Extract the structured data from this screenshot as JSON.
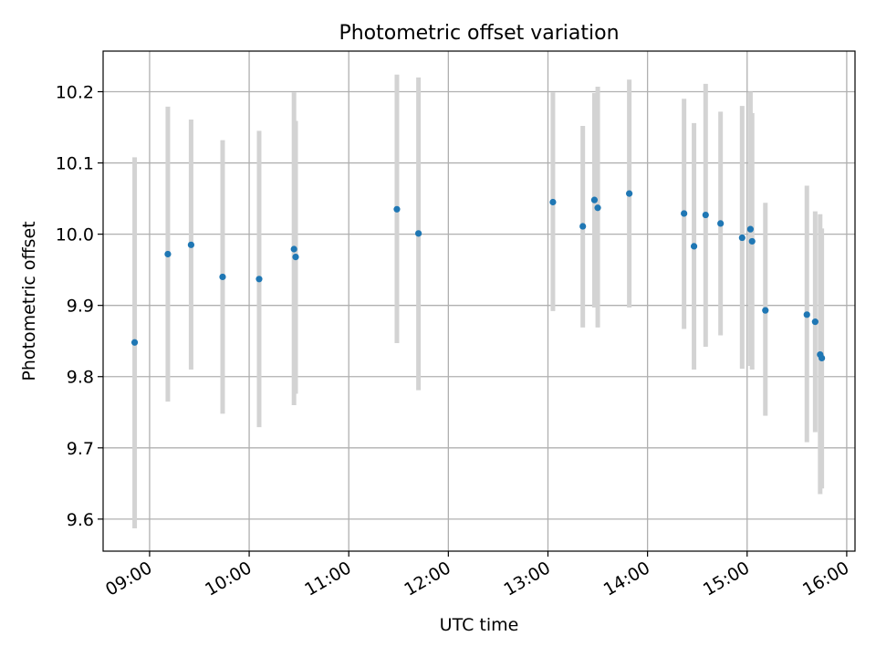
{
  "chart_data": {
    "type": "scatter",
    "title": "Photometric offset variation",
    "xlabel": "UTC time",
    "ylabel": "Photometric offset",
    "x_ticks": [
      "09:00",
      "10:00",
      "11:00",
      "12:00",
      "13:00",
      "14:00",
      "15:00",
      "16:00"
    ],
    "y_ticks": [
      "9.6",
      "9.7",
      "9.8",
      "9.9",
      "10.0",
      "10.1",
      "10.2"
    ],
    "xlim": [
      "08:32",
      "16:05"
    ],
    "ylim": [
      9.555,
      10.257
    ],
    "grid": true,
    "colors": {
      "marker": "#1f77b4",
      "errorbar": "#d3d3d3"
    },
    "points": [
      {
        "x": "08:51",
        "y": 9.848,
        "ymin": 9.587,
        "ymax": 10.108
      },
      {
        "x": "09:11",
        "y": 9.972,
        "ymin": 9.765,
        "ymax": 10.179
      },
      {
        "x": "09:25",
        "y": 9.985,
        "ymin": 9.81,
        "ymax": 10.161
      },
      {
        "x": "09:44",
        "y": 9.94,
        "ymin": 9.748,
        "ymax": 10.132
      },
      {
        "x": "10:06",
        "y": 9.937,
        "ymin": 9.729,
        "ymax": 10.145
      },
      {
        "x": "10:27",
        "y": 9.979,
        "ymin": 9.76,
        "ymax": 10.199
      },
      {
        "x": "10:28",
        "y": 9.968,
        "ymin": 9.776,
        "ymax": 10.159
      },
      {
        "x": "11:29",
        "y": 10.035,
        "ymin": 9.847,
        "ymax": 10.224
      },
      {
        "x": "11:42",
        "y": 10.001,
        "ymin": 9.781,
        "ymax": 10.22
      },
      {
        "x": "13:03",
        "y": 10.045,
        "ymin": 9.892,
        "ymax": 10.199
      },
      {
        "x": "13:21",
        "y": 10.011,
        "ymin": 9.869,
        "ymax": 10.152
      },
      {
        "x": "13:28",
        "y": 10.048,
        "ymin": 9.897,
        "ymax": 10.198
      },
      {
        "x": "13:30",
        "y": 10.037,
        "ymin": 9.869,
        "ymax": 10.207
      },
      {
        "x": "13:49",
        "y": 10.057,
        "ymin": 9.897,
        "ymax": 10.217
      },
      {
        "x": "14:22",
        "y": 10.029,
        "ymin": 9.867,
        "ymax": 10.19
      },
      {
        "x": "14:28",
        "y": 9.983,
        "ymin": 9.81,
        "ymax": 10.156
      },
      {
        "x": "14:35",
        "y": 10.027,
        "ymin": 9.842,
        "ymax": 10.211
      },
      {
        "x": "14:44",
        "y": 10.015,
        "ymin": 9.858,
        "ymax": 10.172
      },
      {
        "x": "14:57",
        "y": 9.995,
        "ymin": 9.811,
        "ymax": 10.18
      },
      {
        "x": "15:02",
        "y": 10.007,
        "ymin": 9.815,
        "ymax": 10.2
      },
      {
        "x": "15:03",
        "y": 9.99,
        "ymin": 9.81,
        "ymax": 10.17
      },
      {
        "x": "15:11",
        "y": 9.893,
        "ymin": 9.745,
        "ymax": 10.044
      },
      {
        "x": "15:36",
        "y": 9.887,
        "ymin": 9.708,
        "ymax": 10.068
      },
      {
        "x": "15:41",
        "y": 9.877,
        "ymin": 9.722,
        "ymax": 10.032
      },
      {
        "x": "15:44",
        "y": 9.831,
        "ymin": 9.635,
        "ymax": 10.028
      },
      {
        "x": "15:45",
        "y": 9.826,
        "ymin": 9.643,
        "ymax": 10.008
      }
    ]
  }
}
